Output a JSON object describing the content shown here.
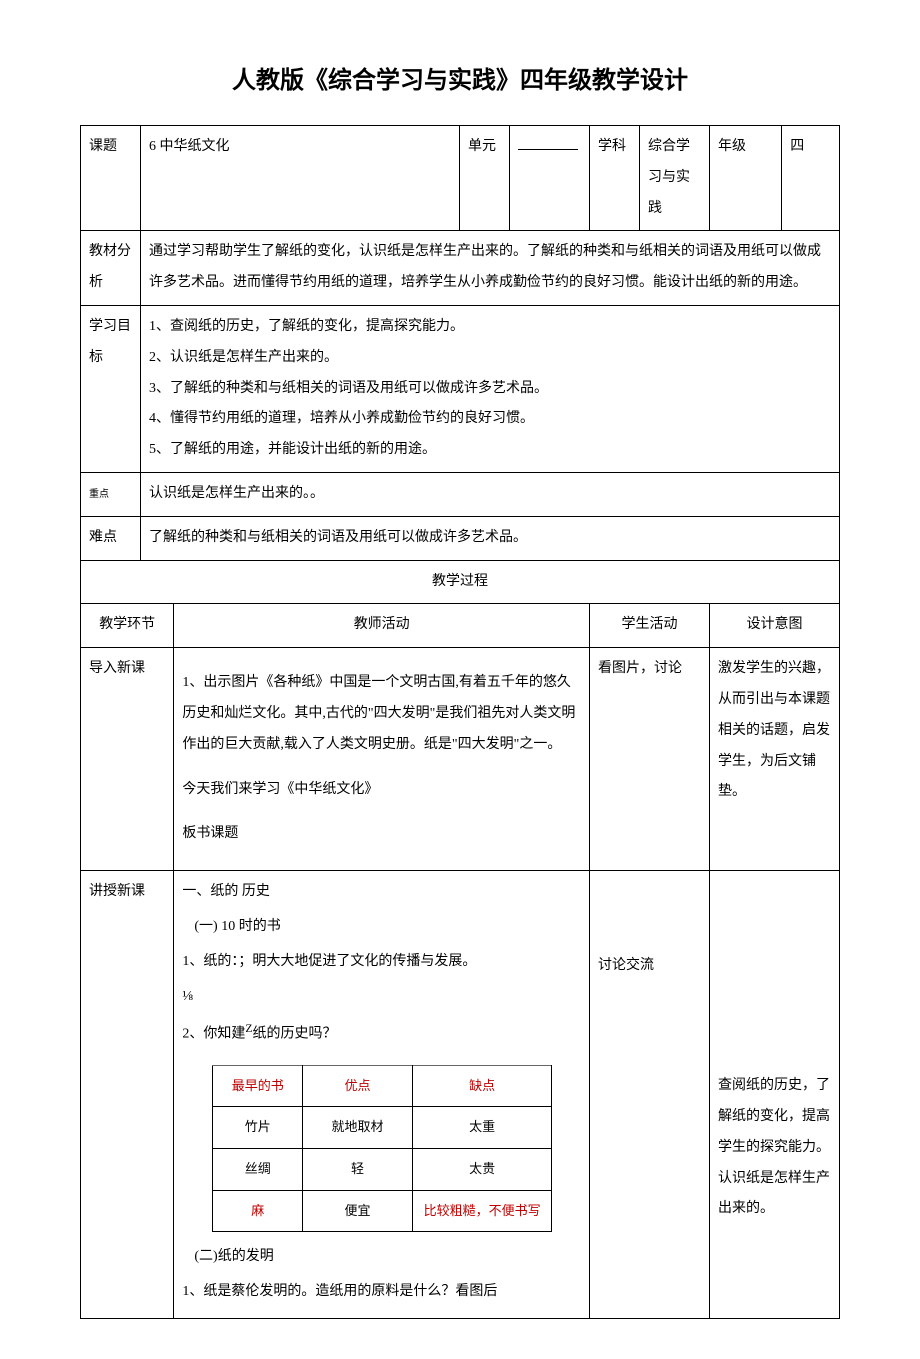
{
  "title": "人教版《综合学习与实践》四年级教学设计",
  "header_row": {
    "topic_label": "课题",
    "topic_value": "6 中华纸文化",
    "unit_label": "单元",
    "unit_value": "",
    "subject_label": "学科",
    "subject_value": "综合学习与实践",
    "grade_label": "年级",
    "grade_value": "四"
  },
  "analysis": {
    "label": "教材分析",
    "text": "通过学习帮助学生了解纸的变化，认识纸是怎样生产出来的。了解纸的种类和与纸相关的词语及用纸可以做成许多艺术品。进而懂得节约用纸的道理，培养学生从小养成勤俭节约的良好习惯。能设计出纸的新的用途。"
  },
  "objectives": {
    "label": "学习目标",
    "items": [
      "1、查阅纸的历史，了解纸的变化，提高探究能力。",
      "2、认识纸是怎样生产出来的。",
      "3、了解纸的种类和与纸相关的词语及用纸可以做成许多艺术品。",
      "4、懂得节约用纸的道理，培养从小养成勤俭节约的良好习惯。",
      "5、了解纸的用途，并能设计出纸的新的用途。"
    ]
  },
  "key_point": {
    "label": "重点",
    "text": "认识纸是怎样生产出来的。。"
  },
  "difficult": {
    "label": "难点",
    "text": "了解纸的种类和与纸相关的词语及用纸可以做成许多艺术品。"
  },
  "process_header": "教学过程",
  "process_cols": {
    "phase": "教学环节",
    "teacher": "教师活动",
    "student": "学生活动",
    "intent": "设计意图"
  },
  "intro": {
    "phase": "导入新课",
    "teacher_lines": [
      "1、出示图片《各种纸》中国是一个文明古国,有着五千年的悠久历史和灿烂文化。其中,古代的\"四大发明\"是我们祖先对人类文明作出的巨大贡献,载入了人类文明史册。纸是\"四大发明\"之一。",
      "今天我们来学习《中华纸文化》",
      "板书课题"
    ],
    "student": "看图片，讨论",
    "intent": "激发学生的兴趣，从而引出与本课题相关的话题，启发学生，为后文铺垫。"
  },
  "lesson": {
    "phase": "讲授新课",
    "sec1_title": "一、纸的  历史",
    "sec1_sub": "(一) 10    时的书",
    "sec1_pt1_a": "1、纸的：",
    "sec1_pt1_b": "；明大大地促进了文化的传播与发展。",
    "sec1_frac": "⅛",
    "sec1_pt2_a": "2、你知建",
    "sec1_pt2_sup": "Z",
    "sec1_pt2_b": "纸的历史吗？",
    "sec2_title": "(二)纸的发明",
    "sec2_pt1": "1、纸是蔡伦发明的。造纸用的原料是什么？看图后",
    "student": "讨论交流",
    "intent": "查阅纸的历史，了解纸的变化，提高学生的探究能力。认识纸是怎样生产出来的。"
  },
  "book_table": {
    "headers": [
      "最早的书",
      "优点",
      "缺点"
    ],
    "rows": [
      {
        "cells": [
          "竹片",
          "就地取材",
          "太重"
        ],
        "red": [
          false,
          false,
          false
        ]
      },
      {
        "cells": [
          "丝绸",
          "轻",
          "太贵"
        ],
        "red": [
          false,
          false,
          false
        ]
      },
      {
        "cells": [
          "麻",
          "便宜",
          "比较粗糙，不便书写"
        ],
        "red": [
          true,
          false,
          true
        ]
      }
    ],
    "col_widths": [
      "90px",
      "110px",
      "140px"
    ]
  },
  "colors": {
    "text": "#000000",
    "bg": "#ffffff",
    "red": "#c00000",
    "border": "#000000"
  }
}
